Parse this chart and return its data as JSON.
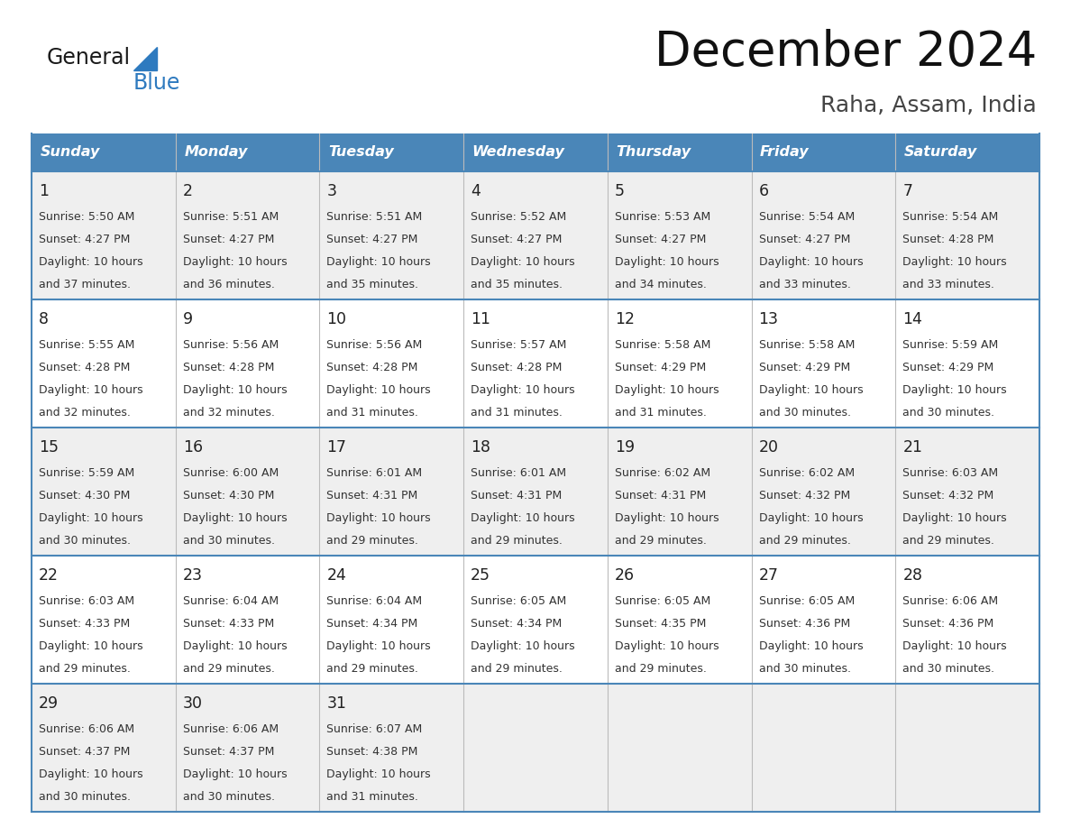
{
  "title": "December 2024",
  "subtitle": "Raha, Assam, India",
  "days_of_week": [
    "Sunday",
    "Monday",
    "Tuesday",
    "Wednesday",
    "Thursday",
    "Friday",
    "Saturday"
  ],
  "header_bg": "#4a86b8",
  "header_text": "#ffffff",
  "row_bg_odd": "#efefef",
  "row_bg_even": "#ffffff",
  "border_color": "#4a86b8",
  "text_color": "#333333",
  "day_num_color": "#222222",
  "logo_general_color": "#1a1a1a",
  "logo_blue_color": "#2e7abf",
  "logo_triangle_color": "#2e7abf",
  "calendar_data": [
    [
      {
        "day": "1",
        "sunrise": "5:50 AM",
        "sunset": "4:27 PM",
        "daylight1": "10 hours",
        "daylight2": "and 37 minutes."
      },
      {
        "day": "2",
        "sunrise": "5:51 AM",
        "sunset": "4:27 PM",
        "daylight1": "10 hours",
        "daylight2": "and 36 minutes."
      },
      {
        "day": "3",
        "sunrise": "5:51 AM",
        "sunset": "4:27 PM",
        "daylight1": "10 hours",
        "daylight2": "and 35 minutes."
      },
      {
        "day": "4",
        "sunrise": "5:52 AM",
        "sunset": "4:27 PM",
        "daylight1": "10 hours",
        "daylight2": "and 35 minutes."
      },
      {
        "day": "5",
        "sunrise": "5:53 AM",
        "sunset": "4:27 PM",
        "daylight1": "10 hours",
        "daylight2": "and 34 minutes."
      },
      {
        "day": "6",
        "sunrise": "5:54 AM",
        "sunset": "4:27 PM",
        "daylight1": "10 hours",
        "daylight2": "and 33 minutes."
      },
      {
        "day": "7",
        "sunrise": "5:54 AM",
        "sunset": "4:28 PM",
        "daylight1": "10 hours",
        "daylight2": "and 33 minutes."
      }
    ],
    [
      {
        "day": "8",
        "sunrise": "5:55 AM",
        "sunset": "4:28 PM",
        "daylight1": "10 hours",
        "daylight2": "and 32 minutes."
      },
      {
        "day": "9",
        "sunrise": "5:56 AM",
        "sunset": "4:28 PM",
        "daylight1": "10 hours",
        "daylight2": "and 32 minutes."
      },
      {
        "day": "10",
        "sunrise": "5:56 AM",
        "sunset": "4:28 PM",
        "daylight1": "10 hours",
        "daylight2": "and 31 minutes."
      },
      {
        "day": "11",
        "sunrise": "5:57 AM",
        "sunset": "4:28 PM",
        "daylight1": "10 hours",
        "daylight2": "and 31 minutes."
      },
      {
        "day": "12",
        "sunrise": "5:58 AM",
        "sunset": "4:29 PM",
        "daylight1": "10 hours",
        "daylight2": "and 31 minutes."
      },
      {
        "day": "13",
        "sunrise": "5:58 AM",
        "sunset": "4:29 PM",
        "daylight1": "10 hours",
        "daylight2": "and 30 minutes."
      },
      {
        "day": "14",
        "sunrise": "5:59 AM",
        "sunset": "4:29 PM",
        "daylight1": "10 hours",
        "daylight2": "and 30 minutes."
      }
    ],
    [
      {
        "day": "15",
        "sunrise": "5:59 AM",
        "sunset": "4:30 PM",
        "daylight1": "10 hours",
        "daylight2": "and 30 minutes."
      },
      {
        "day": "16",
        "sunrise": "6:00 AM",
        "sunset": "4:30 PM",
        "daylight1": "10 hours",
        "daylight2": "and 30 minutes."
      },
      {
        "day": "17",
        "sunrise": "6:01 AM",
        "sunset": "4:31 PM",
        "daylight1": "10 hours",
        "daylight2": "and 29 minutes."
      },
      {
        "day": "18",
        "sunrise": "6:01 AM",
        "sunset": "4:31 PM",
        "daylight1": "10 hours",
        "daylight2": "and 29 minutes."
      },
      {
        "day": "19",
        "sunrise": "6:02 AM",
        "sunset": "4:31 PM",
        "daylight1": "10 hours",
        "daylight2": "and 29 minutes."
      },
      {
        "day": "20",
        "sunrise": "6:02 AM",
        "sunset": "4:32 PM",
        "daylight1": "10 hours",
        "daylight2": "and 29 minutes."
      },
      {
        "day": "21",
        "sunrise": "6:03 AM",
        "sunset": "4:32 PM",
        "daylight1": "10 hours",
        "daylight2": "and 29 minutes."
      }
    ],
    [
      {
        "day": "22",
        "sunrise": "6:03 AM",
        "sunset": "4:33 PM",
        "daylight1": "10 hours",
        "daylight2": "and 29 minutes."
      },
      {
        "day": "23",
        "sunrise": "6:04 AM",
        "sunset": "4:33 PM",
        "daylight1": "10 hours",
        "daylight2": "and 29 minutes."
      },
      {
        "day": "24",
        "sunrise": "6:04 AM",
        "sunset": "4:34 PM",
        "daylight1": "10 hours",
        "daylight2": "and 29 minutes."
      },
      {
        "day": "25",
        "sunrise": "6:05 AM",
        "sunset": "4:34 PM",
        "daylight1": "10 hours",
        "daylight2": "and 29 minutes."
      },
      {
        "day": "26",
        "sunrise": "6:05 AM",
        "sunset": "4:35 PM",
        "daylight1": "10 hours",
        "daylight2": "and 29 minutes."
      },
      {
        "day": "27",
        "sunrise": "6:05 AM",
        "sunset": "4:36 PM",
        "daylight1": "10 hours",
        "daylight2": "and 30 minutes."
      },
      {
        "day": "28",
        "sunrise": "6:06 AM",
        "sunset": "4:36 PM",
        "daylight1": "10 hours",
        "daylight2": "and 30 minutes."
      }
    ],
    [
      {
        "day": "29",
        "sunrise": "6:06 AM",
        "sunset": "4:37 PM",
        "daylight1": "10 hours",
        "daylight2": "and 30 minutes."
      },
      {
        "day": "30",
        "sunrise": "6:06 AM",
        "sunset": "4:37 PM",
        "daylight1": "10 hours",
        "daylight2": "and 30 minutes."
      },
      {
        "day": "31",
        "sunrise": "6:07 AM",
        "sunset": "4:38 PM",
        "daylight1": "10 hours",
        "daylight2": "and 31 minutes."
      },
      null,
      null,
      null,
      null
    ]
  ]
}
